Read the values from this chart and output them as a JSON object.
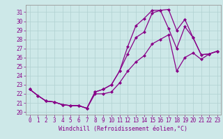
{
  "xlabel": "Windchill (Refroidissement éolien,°C)",
  "bg_color": "#cde8e8",
  "line_color": "#880088",
  "xlim": [
    -0.5,
    23.4
  ],
  "ylim": [
    19.7,
    31.8
  ],
  "yticks": [
    20,
    21,
    22,
    23,
    24,
    25,
    26,
    27,
    28,
    29,
    30,
    31
  ],
  "xticks": [
    0,
    1,
    2,
    3,
    4,
    5,
    6,
    7,
    8,
    9,
    10,
    11,
    12,
    13,
    14,
    15,
    16,
    17,
    18,
    19,
    20,
    21,
    22,
    23
  ],
  "series": [
    [
      22.5,
      21.8,
      21.2,
      21.1,
      20.8,
      20.7,
      20.7,
      20.4,
      22.2,
      22.5,
      23.0,
      24.5,
      27.2,
      29.5,
      30.3,
      31.2,
      31.2,
      31.3,
      29.0,
      30.2,
      28.2,
      26.3,
      26.4,
      26.7
    ],
    [
      22.5,
      21.8,
      21.2,
      21.1,
      20.8,
      20.7,
      20.7,
      20.4,
      22.2,
      22.5,
      23.0,
      24.5,
      26.4,
      28.2,
      28.8,
      30.9,
      31.2,
      29.2,
      27.0,
      29.4,
      28.2,
      26.3,
      26.4,
      26.7
    ],
    [
      22.5,
      21.8,
      21.2,
      21.1,
      20.8,
      20.7,
      20.7,
      20.4,
      22.0,
      22.0,
      22.2,
      23.2,
      24.5,
      25.5,
      26.2,
      27.5,
      28.0,
      28.5,
      24.5,
      26.0,
      26.5,
      25.8,
      26.4,
      26.7
    ]
  ],
  "marker": "D",
  "marker_size": 2.0,
  "linewidth": 0.9,
  "grid_color": "#b0d0d0",
  "xlabel_fontsize": 6.0,
  "tick_fontsize": 5.5
}
